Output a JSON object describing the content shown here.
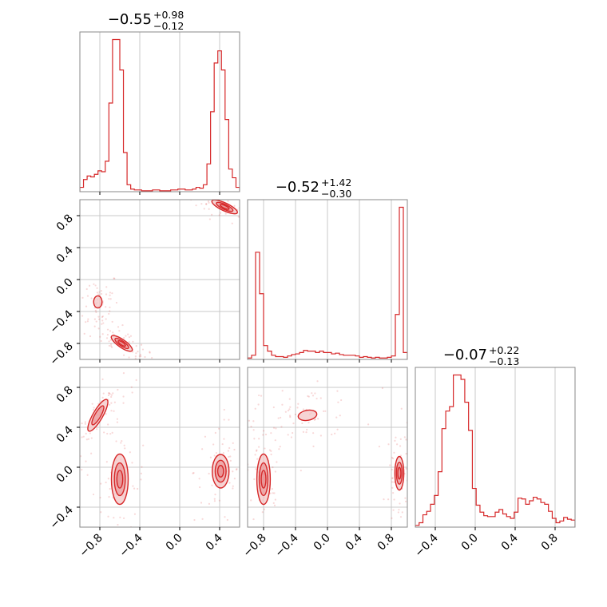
{
  "colors": {
    "accent": "#d62728",
    "fill_outer": "#f3c6c6",
    "fill_inner": "#e8888a",
    "grid": "#c8c8c8",
    "frame": "#888888"
  },
  "chart_data": {
    "type": "corner",
    "grid": true,
    "params": [
      {
        "index": 0,
        "title": {
          "median": "−0.55",
          "plus": "+0.98",
          "minus": "−0.12"
        },
        "range": [
          -1.0,
          0.6
        ],
        "ticks": [
          -0.8,
          -0.4,
          0.0,
          0.4
        ],
        "tick_labels": [
          "−0.8",
          "−0.4",
          "0.0",
          "0.4"
        ]
      },
      {
        "index": 1,
        "title": {
          "median": "−0.52",
          "plus": "+1.42",
          "minus": "−0.30"
        },
        "range": [
          -1.0,
          1.0
        ],
        "ticks": [
          -0.8,
          -0.4,
          0.0,
          0.4,
          0.8
        ],
        "tick_labels": [
          "−0.8",
          "−0.4",
          "0.0",
          "0.4",
          "0.8"
        ]
      },
      {
        "index": 2,
        "title": {
          "median": "−0.07",
          "plus": "+0.22",
          "minus": "−0.13"
        },
        "range": [
          -0.6,
          1.0
        ],
        "ticks": [
          -0.4,
          0.0,
          0.4,
          0.8
        ],
        "tick_labels": [
          "−0.4",
          "0.0",
          "0.4",
          "0.8"
        ]
      }
    ],
    "histograms": [
      {
        "param": 0,
        "bin_range": [
          -1.0,
          0.6
        ],
        "counts": [
          5,
          14,
          18,
          17,
          20,
          24,
          23,
          35,
          102,
          175,
          175,
          140,
          45,
          8,
          3,
          2,
          2,
          1,
          1,
          1,
          2,
          2,
          1,
          1,
          1,
          2,
          2,
          3,
          3,
          2,
          2,
          3,
          5,
          4,
          8,
          32,
          92,
          148,
          162,
          140,
          83,
          26,
          16,
          5
        ]
      },
      {
        "param": 1,
        "bin_range": [
          -1.0,
          1.0
        ],
        "counts": [
          2,
          6,
          155,
          95,
          20,
          12,
          6,
          4,
          4,
          3,
          5,
          7,
          8,
          10,
          13,
          12,
          12,
          10,
          12,
          10,
          10,
          8,
          9,
          7,
          6,
          6,
          6,
          5,
          3,
          4,
          3,
          2,
          3,
          2,
          2,
          3,
          5,
          65,
          220,
          10
        ]
      },
      {
        "param": 2,
        "bin_range": [
          -0.6,
          1.0
        ],
        "counts": [
          2,
          5,
          14,
          18,
          26,
          36,
          63,
          112,
          132,
          137,
          173,
          173,
          168,
          142,
          110,
          44,
          25,
          17,
          13,
          12,
          12,
          17,
          20,
          15,
          12,
          10,
          17,
          33,
          32,
          26,
          30,
          34,
          32,
          28,
          26,
          18,
          10,
          5,
          7,
          11,
          9,
          8
        ]
      }
    ],
    "pairs": [
      {
        "x_param": 0,
        "y_param": 1,
        "modes": [
          {
            "cx": 0.45,
            "cy": 0.91,
            "sx": 0.1,
            "sy": 0.035,
            "angle_deg": -25,
            "level": "high"
          },
          {
            "cx": -0.58,
            "cy": -0.8,
            "sx": 0.09,
            "sy": 0.035,
            "angle_deg": -35,
            "level": "high"
          },
          {
            "cx": -0.82,
            "cy": -0.28,
            "sx": 0.05,
            "sy": 0.09,
            "angle_deg": 0,
            "level": "low"
          }
        ]
      },
      {
        "x_param": 0,
        "y_param": 2,
        "modes": [
          {
            "cx": -0.82,
            "cy": 0.52,
            "sx": 0.035,
            "sy": 0.13,
            "angle_deg": -30,
            "level": "med"
          },
          {
            "cx": -0.6,
            "cy": -0.12,
            "sx": 0.06,
            "sy": 0.18,
            "angle_deg": 0,
            "level": "high"
          },
          {
            "cx": 0.41,
            "cy": -0.04,
            "sx": 0.06,
            "sy": 0.12,
            "angle_deg": 0,
            "level": "high"
          }
        ]
      },
      {
        "x_param": 1,
        "y_param": 2,
        "modes": [
          {
            "cx": -0.8,
            "cy": -0.12,
            "sx": 0.06,
            "sy": 0.18,
            "angle_deg": 0,
            "level": "high"
          },
          {
            "cx": 0.9,
            "cy": -0.06,
            "sx": 0.04,
            "sy": 0.12,
            "angle_deg": 0,
            "level": "high"
          },
          {
            "cx": -0.25,
            "cy": 0.52,
            "sx": 0.14,
            "sy": 0.06,
            "angle_deg": 10,
            "level": "low"
          }
        ]
      }
    ]
  }
}
